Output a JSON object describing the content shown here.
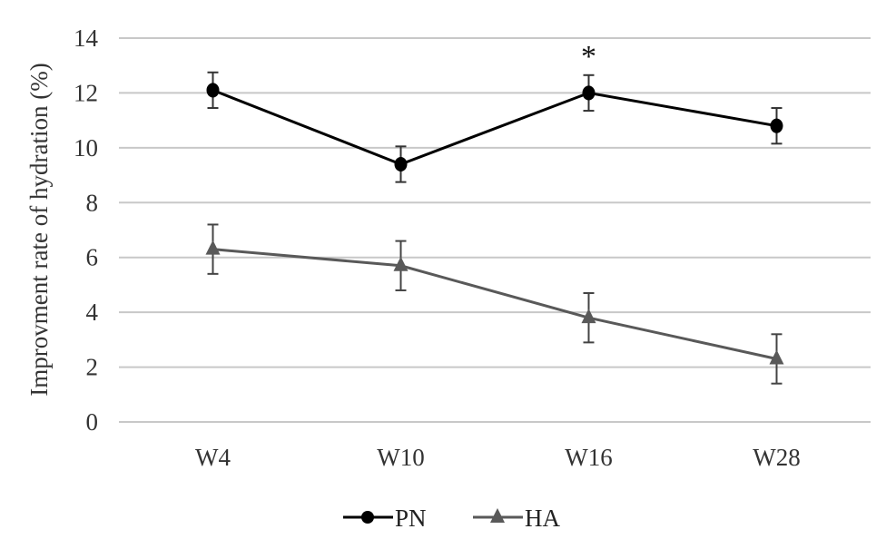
{
  "chart_data": {
    "type": "line",
    "title": "",
    "xlabel": "",
    "ylabel": "Improvment rate of hydration (%)",
    "categories": [
      "W4",
      "W10",
      "W16",
      "W28"
    ],
    "ylim": [
      0,
      14
    ],
    "yticks": [
      0,
      2,
      4,
      6,
      8,
      10,
      12,
      14
    ],
    "ytick_labels": [
      "0",
      "2",
      "4",
      "6",
      "8",
      "10",
      "12",
      "14"
    ],
    "grid": true,
    "legend_position": "bottom",
    "series": [
      {
        "name": "PN",
        "marker": "circle",
        "color": "#000000",
        "values": [
          12.1,
          9.4,
          12.0,
          10.8
        ],
        "errors": [
          0.65,
          0.65,
          0.65,
          0.65
        ]
      },
      {
        "name": "HA",
        "marker": "triangle",
        "color": "#595959",
        "values": [
          6.3,
          5.7,
          3.8,
          2.3
        ],
        "errors": [
          0.9,
          0.9,
          0.9,
          0.9
        ]
      }
    ],
    "annotations": [
      {
        "category": "W16",
        "series": "PN",
        "text": "*"
      }
    ]
  }
}
